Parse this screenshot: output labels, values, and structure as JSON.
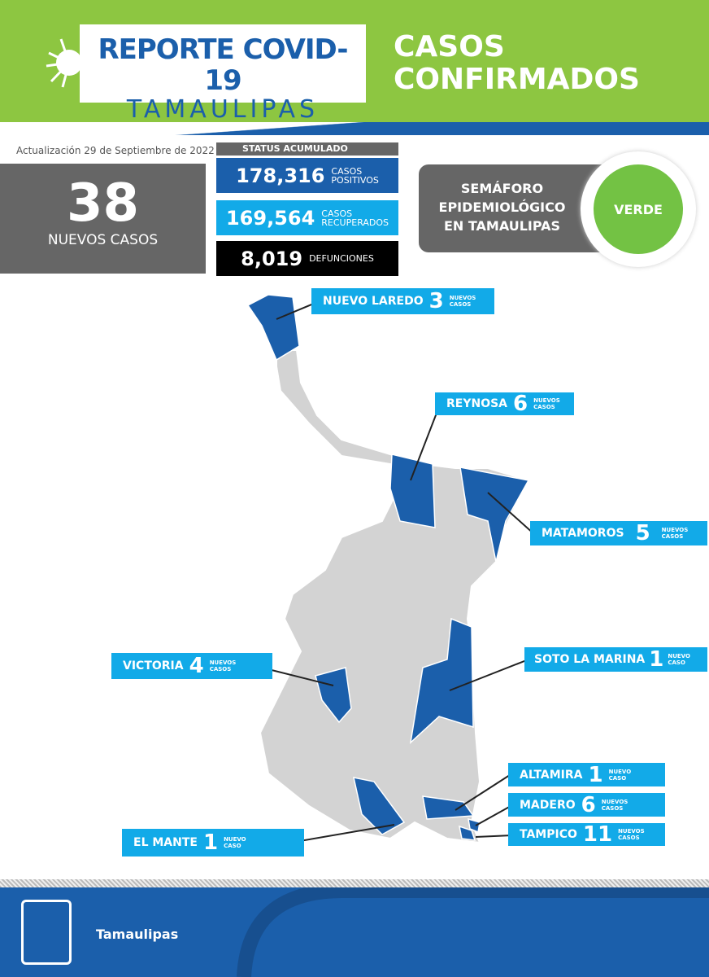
{
  "header": {
    "logo_line1": "REPORTE COVID-19",
    "logo_line2": "TAMAULIPAS",
    "title_line1": "CASOS",
    "title_line2": "CONFIRMADOS"
  },
  "update": "Actualización  29 de Septiembre de 2022",
  "new_cases": {
    "value": "38",
    "label": "NUEVOS CASOS"
  },
  "status": {
    "heading": "STATUS ACUMULADO",
    "positive": {
      "value": "178,316",
      "l1": "CASOS",
      "l2": "POSITIVOS",
      "color": "#1b5fab"
    },
    "recovered": {
      "value": "169,564",
      "l1": "CASOS",
      "l2": "RECUPERADOS",
      "color": "#12aae8"
    },
    "deaths": {
      "value": "8,019",
      "l1": "DEFUNCIONES",
      "l2": "",
      "color": "#000000"
    }
  },
  "semaforo": {
    "l1": "SEMÁFORO",
    "l2": "EPIDEMIOLÓGICO",
    "l3": "EN TAMAULIPAS",
    "status": "VERDE",
    "color": "#73c244"
  },
  "municipalities": [
    {
      "name": "NUEVO LAREDO",
      "count": "3",
      "s1": "NUEVOS",
      "s2": "CASOS"
    },
    {
      "name": "REYNOSA",
      "count": "6",
      "s1": "NUEVOS",
      "s2": "CASOS"
    },
    {
      "name": "MATAMOROS",
      "count": "5",
      "s1": "NUEVOS",
      "s2": "CASOS"
    },
    {
      "name": "VICTORIA",
      "count": "4",
      "s1": "NUEVOS",
      "s2": "CASOS"
    },
    {
      "name": "SOTO LA MARINA",
      "count": "1",
      "s1": "NUEVO",
      "s2": "CASO"
    },
    {
      "name": "ALTAMIRA",
      "count": "1",
      "s1": "NUEVO",
      "s2": "CASO"
    },
    {
      "name": "MADERO",
      "count": "6",
      "s1": "NUEVOS",
      "s2": "CASOS"
    },
    {
      "name": "TAMPICO",
      "count": "11",
      "s1": "NUEVOS",
      "s2": "CASOS"
    },
    {
      "name": "EL MANTE",
      "count": "1",
      "s1": "NUEVO",
      "s2": "CASO"
    }
  ],
  "footer": {
    "brand": "Tamaulipas"
  }
}
